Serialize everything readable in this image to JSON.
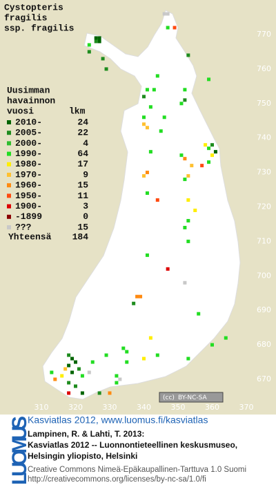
{
  "title_lines": [
    "Cystopteris",
    "fragilis",
    "ssp. fragilis"
  ],
  "legend": {
    "header": [
      "Uusimman",
      "havainnon"
    ],
    "col_year": "vuosi",
    "col_count": "lkm",
    "rows": [
      {
        "label": "2010-",
        "count": 24,
        "color": "#006400"
      },
      {
        "label": "2005-",
        "count": 22,
        "color": "#1e8c1e"
      },
      {
        "label": "2000-",
        "count": 4,
        "color": "#2ebd2e"
      },
      {
        "label": "1990-",
        "count": 64,
        "color": "#22dd22"
      },
      {
        "label": "1980-",
        "count": 17,
        "color": "#ffee00"
      },
      {
        "label": "1970-",
        "count": 9,
        "color": "#ffc030"
      },
      {
        "label": "1960-",
        "count": 15,
        "color": "#ff8a10"
      },
      {
        "label": "1950-",
        "count": 11,
        "color": "#ff4a10"
      },
      {
        "label": "1900-",
        "count": 3,
        "color": "#dd0000"
      },
      {
        "label": "-1899",
        "count": 0,
        "color": "#8a0000"
      },
      {
        "label": "???",
        "count": 15,
        "color": "#c8c8c8"
      }
    ],
    "total_label": "Yhteensä",
    "total": 184
  },
  "axes": {
    "x_ticks": [
      310,
      320,
      330,
      340,
      350,
      360,
      370
    ],
    "y_ticks": [
      770,
      760,
      750,
      740,
      730,
      720,
      710,
      700,
      690,
      680,
      670
    ]
  },
  "squares": [
    [
      349,
      772,
      7
    ],
    [
      347,
      772,
      3
    ],
    [
      346,
      776,
      10
    ],
    [
      347,
      776,
      10
    ],
    [
      326,
      769,
      0
    ],
    [
      327,
      769,
      0
    ],
    [
      326,
      768,
      1
    ],
    [
      327,
      768,
      0
    ],
    [
      324,
      767,
      3
    ],
    [
      324,
      765,
      1
    ],
    [
      328,
      763,
      1
    ],
    [
      329,
      760,
      1
    ],
    [
      353,
      764,
      1
    ],
    [
      344,
      758,
      3
    ],
    [
      341,
      754,
      3
    ],
    [
      343,
      754,
      3
    ],
    [
      352,
      754,
      3
    ],
    [
      359,
      757,
      3
    ],
    [
      340,
      752,
      1
    ],
    [
      342,
      749,
      3
    ],
    [
      340,
      746,
      3
    ],
    [
      346,
      746,
      3
    ],
    [
      351,
      750,
      3
    ],
    [
      352,
      751,
      1
    ],
    [
      340,
      744,
      5
    ],
    [
      341,
      743,
      5
    ],
    [
      345,
      742,
      3
    ],
    [
      358,
      738,
      4
    ],
    [
      359,
      737,
      3
    ],
    [
      360,
      738,
      1
    ],
    [
      361,
      736,
      0
    ],
    [
      360,
      735,
      4
    ],
    [
      357,
      732,
      7
    ],
    [
      359,
      733,
      3
    ],
    [
      351,
      735,
      3
    ],
    [
      352,
      734,
      6
    ],
    [
      352,
      728,
      3
    ],
    [
      353,
      729,
      5
    ],
    [
      342,
      736,
      3
    ],
    [
      340,
      729,
      5
    ],
    [
      341,
      730,
      6
    ],
    [
      354,
      732,
      5
    ],
    [
      344,
      722,
      7
    ],
    [
      341,
      724,
      3
    ],
    [
      353,
      722,
      4
    ],
    [
      353,
      716,
      3
    ],
    [
      352,
      714,
      3
    ],
    [
      353,
      710,
      3
    ],
    [
      355,
      719,
      4
    ],
    [
      347,
      702,
      8
    ],
    [
      341,
      706,
      3
    ],
    [
      352,
      698,
      10
    ],
    [
      338,
      694,
      6
    ],
    [
      339,
      694,
      6
    ],
    [
      337,
      692,
      1
    ],
    [
      356,
      689,
      3
    ],
    [
      364,
      682,
      3
    ],
    [
      360,
      680,
      3
    ],
    [
      353,
      676,
      3
    ],
    [
      342,
      682,
      4
    ],
    [
      335,
      678,
      3
    ],
    [
      335,
      675,
      3
    ],
    [
      334,
      679,
      3
    ],
    [
      340,
      676,
      4
    ],
    [
      344,
      677,
      3
    ],
    [
      329,
      677,
      3
    ],
    [
      332,
      671,
      3
    ],
    [
      332,
      669,
      3
    ],
    [
      333,
      670,
      10
    ],
    [
      330,
      666,
      6
    ],
    [
      327,
      666,
      1
    ],
    [
      318,
      677,
      1
    ],
    [
      319,
      676,
      0
    ],
    [
      320,
      675,
      0
    ],
    [
      318,
      674,
      0
    ],
    [
      317,
      673,
      5
    ],
    [
      321,
      673,
      1
    ],
    [
      319,
      672,
      0
    ],
    [
      322,
      671,
      3
    ],
    [
      316,
      671,
      4
    ],
    [
      314,
      670,
      6
    ],
    [
      318,
      669,
      1
    ],
    [
      320,
      668,
      1
    ],
    [
      324,
      672,
      10
    ],
    [
      325,
      675,
      3
    ],
    [
      322,
      666,
      0
    ],
    [
      318,
      666,
      8
    ],
    [
      313,
      672,
      3
    ]
  ],
  "license_badge": [
    "(cc)",
    "BY-NC-SA"
  ],
  "footer": {
    "brand": "LUOMUS",
    "link": "Kasviatlas 2012, www.luomus.fi/kasviatlas",
    "citation": [
      "Lampinen, R. & Lahti, T. 2013:",
      "Kasviatlas 2012 -- Luonnontieteellinen keskusmuseo,",
      "Helsingin yliopisto, Helsinki"
    ],
    "license": [
      "Creative Commons Nimeä-Epäkaupallinen-Tarttuva 1.0 Suomi",
      "http://creativecommons.org/licenses/by-nc-sa/1.0/fi"
    ]
  }
}
